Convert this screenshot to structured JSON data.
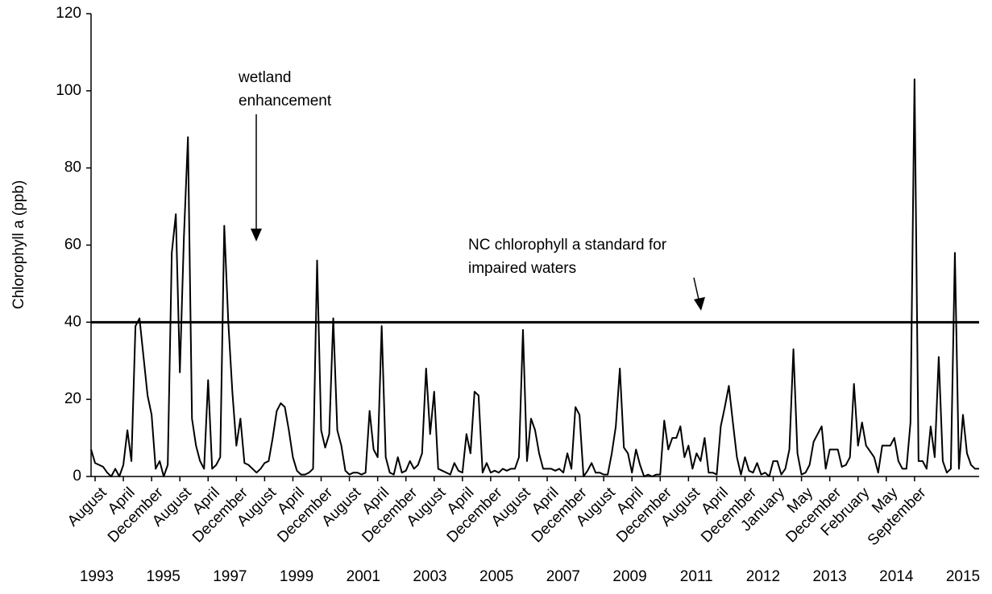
{
  "chart_data": {
    "type": "line",
    "ylabel": "Chlorophyll a (ppb)",
    "ylim": [
      0,
      120
    ],
    "yticks": [
      0,
      20,
      40,
      60,
      80,
      100,
      120
    ],
    "reference_line": 40,
    "annotations": [
      [
        "wetland",
        "enhancement"
      ],
      [
        "NC chlorophyll a standard for",
        "impaired waters"
      ]
    ],
    "year_labels": [
      "1993",
      "1995",
      "1997",
      "1999",
      "2001",
      "2003",
      "2005",
      "2007",
      "2009",
      "2011",
      "2012",
      "2013",
      "2014",
      "2015"
    ],
    "categories": [
      null,
      "August",
      null,
      null,
      null,
      null,
      null,
      null,
      "April",
      null,
      null,
      null,
      null,
      null,
      null,
      "December",
      null,
      null,
      null,
      null,
      null,
      null,
      "August",
      null,
      null,
      null,
      null,
      null,
      null,
      "April",
      null,
      null,
      null,
      null,
      null,
      null,
      "December",
      null,
      null,
      null,
      null,
      null,
      null,
      "August",
      null,
      null,
      null,
      null,
      null,
      null,
      "April",
      null,
      null,
      null,
      null,
      null,
      null,
      "December",
      null,
      null,
      null,
      null,
      null,
      null,
      "August",
      null,
      null,
      null,
      null,
      null,
      null,
      "April",
      null,
      null,
      null,
      null,
      null,
      null,
      "December",
      null,
      null,
      null,
      null,
      null,
      null,
      "August",
      null,
      null,
      null,
      null,
      null,
      null,
      "April",
      null,
      null,
      null,
      null,
      null,
      null,
      "December",
      null,
      null,
      null,
      null,
      null,
      null,
      "August",
      null,
      null,
      null,
      null,
      null,
      null,
      "April",
      null,
      null,
      null,
      null,
      null,
      null,
      "December",
      null,
      null,
      null,
      null,
      null,
      null,
      "August",
      null,
      null,
      null,
      null,
      null,
      null,
      "April",
      null,
      null,
      null,
      null,
      null,
      null,
      "December",
      null,
      null,
      null,
      null,
      null,
      null,
      "August",
      null,
      null,
      null,
      null,
      null,
      null,
      "April",
      null,
      null,
      null,
      null,
      null,
      null,
      "December",
      null,
      null,
      null,
      null,
      null,
      null,
      "January",
      null,
      null,
      null,
      null,
      null,
      null,
      "May",
      null,
      null,
      null,
      null,
      null,
      null,
      "December",
      null,
      null,
      null,
      null,
      null,
      null,
      "February",
      null,
      null,
      null,
      null,
      null,
      null,
      "May",
      null,
      null,
      null,
      null,
      null,
      null,
      "September",
      null,
      null,
      null,
      null,
      null,
      null,
      null,
      null,
      null,
      null,
      null,
      null,
      null,
      null,
      null,
      null
    ],
    "series": [
      {
        "color": "#000000",
        "values": [
          7,
          3.5,
          3,
          2.5,
          1,
          0,
          2,
          0,
          3,
          12,
          4,
          39,
          41,
          31,
          21,
          16,
          2,
          4,
          0,
          3,
          58,
          68,
          27,
          62,
          88,
          15,
          8,
          4,
          2,
          25,
          2,
          3,
          5,
          65,
          40,
          22,
          8,
          15,
          3.5,
          3,
          2,
          1,
          2,
          3.5,
          4,
          10,
          17,
          19,
          18,
          12,
          5,
          1.5,
          0.5,
          0.5,
          1,
          2,
          56,
          12,
          7.5,
          11,
          41,
          12,
          8,
          1.5,
          0.5,
          1,
          1,
          0.5,
          1,
          17,
          7,
          5,
          39,
          5,
          1,
          0.5,
          5,
          1,
          1.5,
          4,
          2,
          3,
          6,
          28,
          11,
          22,
          2,
          1.5,
          1,
          0.5,
          3.5,
          1.5,
          1,
          11,
          6,
          22,
          21,
          1,
          3.5,
          1,
          1.5,
          1,
          2,
          1.5,
          2,
          2,
          5,
          38,
          4,
          15,
          12,
          6,
          2,
          2,
          2,
          1.5,
          2,
          1,
          6,
          2,
          18,
          16,
          0,
          1.5,
          3.5,
          1,
          1,
          0.5,
          0.5,
          6,
          13,
          28,
          7.5,
          6,
          1,
          7,
          3,
          0,
          0.5,
          0,
          0.5,
          0.5,
          14.5,
          7,
          10,
          10,
          13,
          5,
          8,
          2,
          6,
          4,
          10,
          1,
          1,
          0.5,
          13,
          18,
          23.5,
          14,
          5,
          0.5,
          5,
          1.5,
          1,
          3.5,
          0.5,
          1,
          0,
          4,
          4,
          0.5,
          2,
          7,
          33,
          6,
          0.5,
          1,
          3,
          9,
          11,
          13,
          2,
          7,
          7,
          7,
          2.5,
          3,
          5,
          24,
          8,
          14,
          8,
          6.5,
          5,
          1,
          8,
          8,
          8,
          10,
          4,
          2,
          2,
          14,
          103,
          4,
          4,
          2,
          13,
          5,
          31,
          4,
          1,
          2,
          58,
          2,
          16,
          6,
          3,
          2,
          2
        ]
      }
    ]
  }
}
